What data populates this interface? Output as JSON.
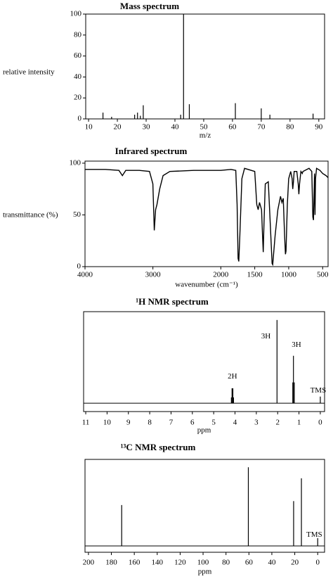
{
  "chart_data": [
    {
      "type": "stem",
      "title": "Mass spectrum",
      "x_label": "m/z",
      "y_label": "relative intensity",
      "x": [
        15,
        18,
        26,
        27,
        28,
        29,
        42,
        43,
        45,
        61,
        70,
        73,
        88
      ],
      "values": [
        6,
        2,
        4,
        6,
        3,
        13,
        4,
        100,
        14,
        15,
        10,
        4,
        5
      ],
      "color": "#000000",
      "xlim": [
        9,
        92
      ],
      "ylim": [
        0,
        100
      ],
      "xticks": [
        10,
        20,
        30,
        40,
        50,
        60,
        70,
        80,
        90
      ],
      "yticks": [
        0,
        20,
        40,
        60,
        80,
        100
      ]
    },
    {
      "type": "line",
      "title": "Infrared spectrum",
      "x_label": "wavenumber (cm⁻¹)",
      "y_label": "transmittance (%)",
      "x": [
        4000,
        3700,
        3500,
        3450,
        3400,
        3200,
        3050,
        3000,
        2980,
        2960,
        2940,
        2900,
        2850,
        2750,
        2400,
        2000,
        1850,
        1780,
        1760,
        1745,
        1735,
        1720,
        1690,
        1650,
        1500,
        1470,
        1450,
        1430,
        1400,
        1385,
        1375,
        1365,
        1345,
        1300,
        1270,
        1245,
        1235,
        1200,
        1160,
        1120,
        1100,
        1080,
        1060,
        1048,
        1040,
        1020,
        1000,
        970,
        950,
        940,
        930,
        920,
        880,
        860,
        850,
        840,
        820,
        800,
        790,
        700,
        660,
        645,
        635,
        620,
        612,
        605,
        590,
        540,
        500,
        450,
        420
      ],
      "values": [
        94,
        94,
        93,
        88,
        93,
        93,
        92,
        80,
        35,
        55,
        60,
        75,
        88,
        92,
        93,
        93,
        94,
        93,
        60,
        8,
        5,
        30,
        85,
        95,
        92,
        60,
        55,
        62,
        55,
        30,
        14,
        40,
        80,
        82,
        40,
        3,
        2,
        30,
        55,
        68,
        62,
        66,
        30,
        12,
        15,
        60,
        85,
        92,
        85,
        75,
        82,
        92,
        92,
        80,
        70,
        80,
        92,
        90,
        92,
        95,
        92,
        48,
        45,
        90,
        50,
        85,
        95,
        93,
        90,
        88,
        86
      ],
      "color": "#000000",
      "xlim": [
        4000,
        420
      ],
      "ylim": [
        0,
        102
      ],
      "xticks": [
        4000,
        3000,
        2000,
        1500,
        1000,
        500
      ],
      "yticks": [
        0,
        50,
        100
      ]
    },
    {
      "type": "stem",
      "title": "¹H NMR spectrum",
      "x_label": "ppm",
      "x": [
        4.17,
        4.14,
        4.1,
        4.07,
        2.03,
        1.29,
        1.26,
        1.22,
        0
      ],
      "values": [
        7,
        18,
        18,
        7,
        100,
        25,
        57,
        25,
        8
      ],
      "color": "#000000",
      "xlim": [
        11.1,
        -0.2
      ],
      "ylim": [
        -10,
        110
      ],
      "baseline": true,
      "xticks": [
        11,
        10,
        9,
        8,
        7,
        6,
        5,
        4,
        3,
        2,
        1,
        0
      ],
      "annotations": [
        {
          "text": "2H",
          "x": 4.12,
          "y": 32
        },
        {
          "text": "3H",
          "x": 2.55,
          "y": 80
        },
        {
          "text": "3H",
          "x": 1.12,
          "y": 70
        },
        {
          "text": "TMS",
          "x": 0.1,
          "y": 15
        }
      ]
    },
    {
      "type": "stem",
      "title": "¹³C NMR spectrum",
      "x_label": "ppm",
      "x": [
        171,
        60.5,
        21,
        14.2,
        0
      ],
      "values": [
        52,
        100,
        57,
        86,
        10
      ],
      "color": "#000000",
      "xlim": [
        203,
        -6
      ],
      "ylim": [
        -8,
        110
      ],
      "baseline": true,
      "xticks": [
        200,
        180,
        160,
        140,
        120,
        100,
        80,
        60,
        40,
        20,
        0
      ],
      "annotations": [
        {
          "text": "TMS",
          "x": 3,
          "y": 14
        }
      ]
    }
  ]
}
